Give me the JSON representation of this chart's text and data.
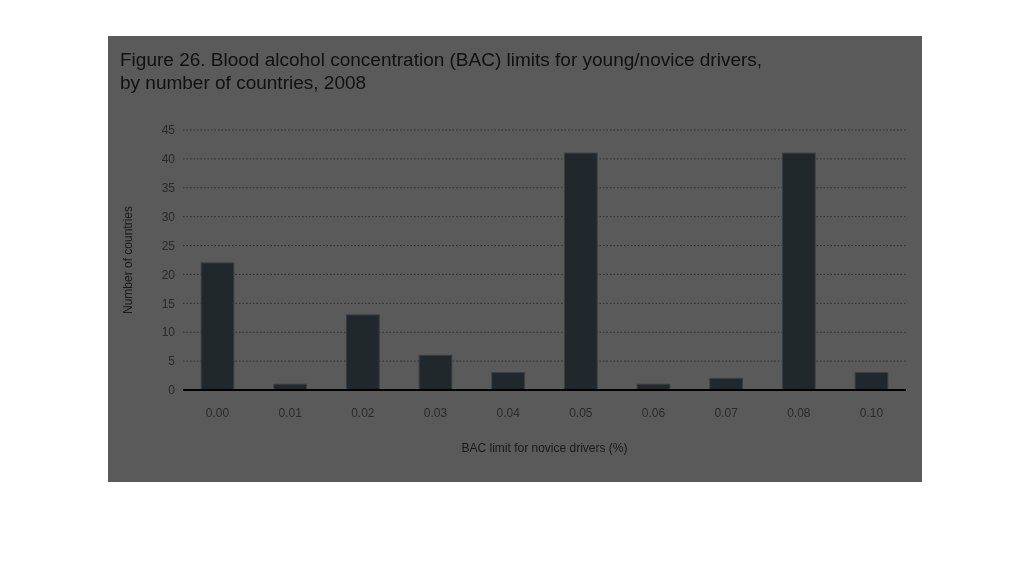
{
  "chart_data": {
    "type": "bar",
    "title": "Figure 26. Blood alcohol concentration (BAC) limits for young/novice drivers, by number of countries, 2008",
    "xlabel": "BAC limit for novice drivers (%)",
    "ylabel": "Number of countries",
    "categories": [
      "0.00",
      "0.01",
      "0.02",
      "0.03",
      "0.04",
      "0.05",
      "0.06",
      "0.07",
      "0.08",
      "0.10"
    ],
    "values": [
      22,
      1,
      13,
      6,
      3,
      41,
      1,
      2,
      41,
      3
    ],
    "color": "#21282b",
    "ylim": [
      0,
      45
    ],
    "yticks": [
      0,
      5,
      10,
      15,
      20,
      25,
      30,
      35,
      40,
      45
    ],
    "grid": "y"
  }
}
